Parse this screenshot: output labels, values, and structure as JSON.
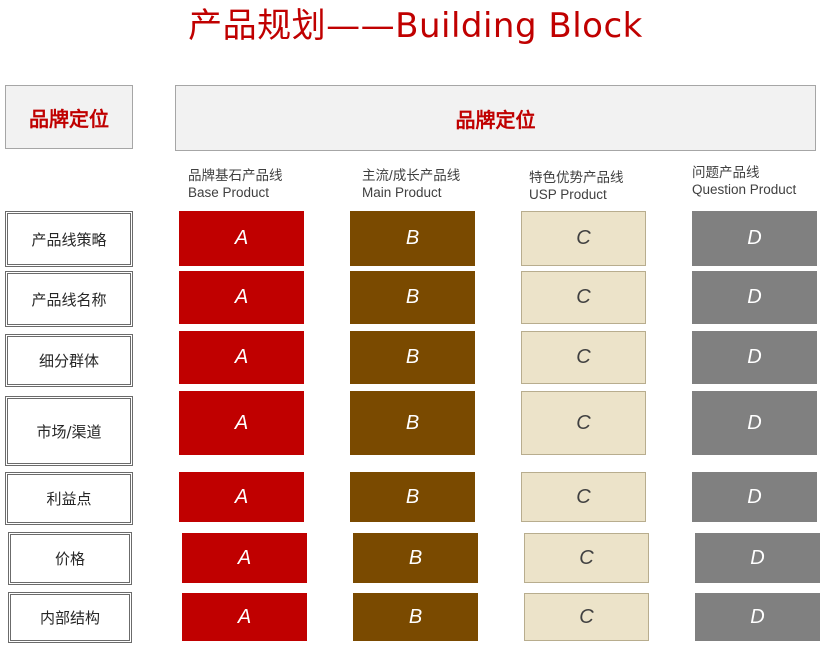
{
  "title": "产品规划——Building Block",
  "left_header": "品牌定位",
  "top_header": "品牌定位",
  "columns": [
    {
      "cn": "品牌基石产品线",
      "en": "Base Product",
      "letter": "A",
      "color": "#c00000"
    },
    {
      "cn": "主流/成长产品线",
      "en": "Main Product",
      "letter": "B",
      "color": "#7a4a00"
    },
    {
      "cn": "特色优势产品线",
      "en": "USP Product",
      "letter": "C",
      "color": "#ece3c9"
    },
    {
      "cn": "问题产品线",
      "en": "Question Product",
      "letter": "D",
      "color": "#808080"
    }
  ],
  "rows": [
    {
      "label": "产品线策略"
    },
    {
      "label": "产品线名称"
    },
    {
      "label": "细分群体"
    },
    {
      "label": "市场/渠道"
    },
    {
      "label": "利益点"
    },
    {
      "label": "价格"
    },
    {
      "label": "内部结构"
    }
  ]
}
